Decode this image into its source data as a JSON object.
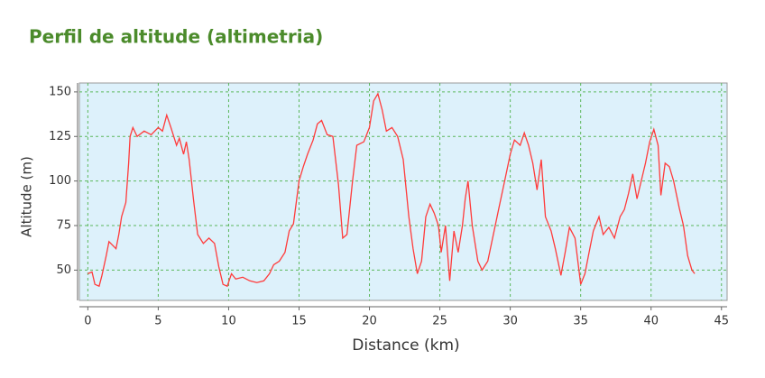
{
  "chart_data": {
    "type": "line",
    "title": "Perfil de altitude (altimetria)",
    "x_label": "Distance (km)",
    "y_label": "Altitude (m)",
    "xlim": [
      -0.6,
      45.4
    ],
    "ylim": [
      33,
      155
    ],
    "xticks": [
      0,
      5,
      10,
      15,
      20,
      25,
      30,
      35,
      40,
      45
    ],
    "yticks": [
      50,
      75,
      100,
      125,
      150
    ],
    "grid": true,
    "series": [
      {
        "color": "#ff3b3b",
        "x": [
          0,
          0.3,
          0.5,
          0.8,
          1.0,
          1.3,
          1.5,
          2.0,
          2.2,
          2.4,
          2.7,
          2.9,
          3.0,
          3.2,
          3.5,
          4.0,
          4.5,
          5.0,
          5.3,
          5.6,
          5.9,
          6.3,
          6.5,
          6.8,
          7.0,
          7.2,
          7.5,
          7.8,
          8.2,
          8.6,
          9.0,
          9.3,
          9.6,
          9.9,
          10.2,
          10.5,
          11.0,
          11.5,
          12.0,
          12.5,
          12.9,
          13.2,
          13.6,
          14.0,
          14.3,
          14.6,
          15.0,
          15.3,
          15.6,
          16.0,
          16.3,
          16.6,
          17.0,
          17.4,
          17.8,
          18.1,
          18.4,
          18.8,
          19.1,
          19.6,
          20.0,
          20.3,
          20.6,
          20.9,
          21.2,
          21.6,
          22.0,
          22.4,
          22.8,
          23.1,
          23.4,
          23.7,
          24.0,
          24.3,
          24.6,
          24.9,
          25.1,
          25.4,
          25.7,
          26.0,
          26.3,
          26.6,
          26.8,
          27.0,
          27.3,
          27.7,
          28.0,
          28.4,
          28.8,
          29.2,
          29.6,
          30.0,
          30.3,
          30.7,
          31.0,
          31.3,
          31.6,
          31.9,
          32.2,
          32.5,
          32.9,
          33.2,
          33.6,
          33.9,
          34.2,
          34.6,
          35.0,
          35.3,
          35.6,
          35.9,
          36.3,
          36.6,
          37.0,
          37.4,
          37.8,
          38.1,
          38.4,
          38.7,
          39.0,
          39.3,
          39.6,
          39.9,
          40.2,
          40.5,
          40.7,
          41.0,
          41.3,
          41.6,
          42.0,
          42.3,
          42.6,
          42.9,
          43.1
        ],
        "values": [
          48,
          49,
          42,
          41,
          47,
          58,
          66,
          62,
          70,
          80,
          88,
          110,
          125,
          130,
          125,
          128,
          126,
          130,
          128,
          137,
          130,
          120,
          124,
          115,
          122,
          112,
          90,
          70,
          65,
          68,
          65,
          52,
          42,
          41,
          48,
          45,
          46,
          44,
          43,
          44,
          48,
          53,
          55,
          60,
          72,
          76,
          100,
          108,
          115,
          123,
          132,
          134,
          126,
          125,
          98,
          68,
          70,
          100,
          120,
          122,
          130,
          145,
          149,
          140,
          128,
          130,
          125,
          112,
          80,
          62,
          48,
          55,
          80,
          87,
          82,
          75,
          60,
          75,
          44,
          72,
          60,
          75,
          90,
          100,
          75,
          55,
          50,
          55,
          70,
          85,
          100,
          115,
          123,
          120,
          127,
          120,
          110,
          95,
          112,
          80,
          72,
          62,
          47,
          60,
          74,
          68,
          42,
          48,
          60,
          72,
          80,
          70,
          74,
          68,
          80,
          84,
          93,
          104,
          90,
          100,
          110,
          122,
          129,
          120,
          92,
          110,
          108,
          100,
          85,
          75,
          58,
          50,
          48
        ]
      }
    ]
  }
}
